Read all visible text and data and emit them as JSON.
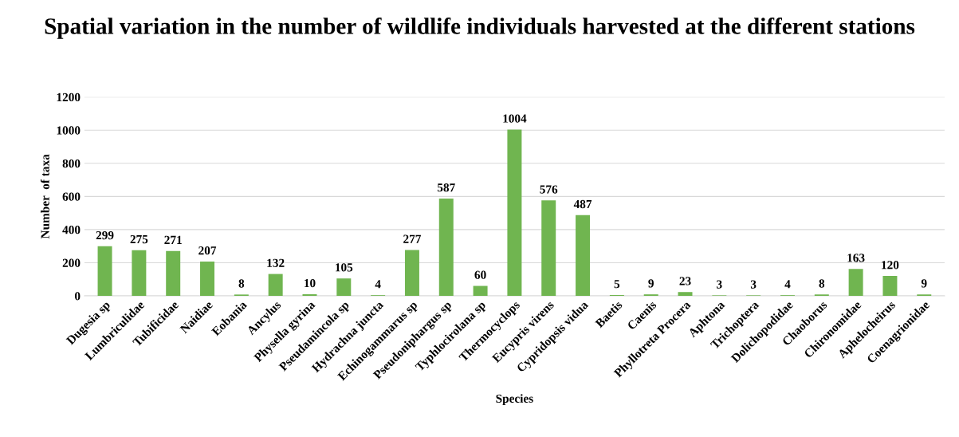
{
  "chart_data": {
    "type": "bar",
    "title": "Spatial variation in the number of wildlife individuals harvested at the different stations",
    "xlabel": "Species",
    "ylabel": "Number  of taxa",
    "categories": [
      "Dugesia sp",
      "Lumbriculidae",
      "Tubificidae",
      "Naidiae",
      "Eobania",
      "Ancylus",
      "Physella gyrina",
      "Pseudamincola sp",
      "Hydrachna juncta",
      "Echinogammarus sp",
      "Pseudoniphargus sp",
      "Typhlocirolana sp",
      "Thermocyclops",
      "Eucypris virens",
      "Cypridopsis vidua",
      "Baetis",
      "Caenis",
      "Phyllotreta Procera",
      "Aphtona",
      "Trichoptera",
      "Dolichopodidae",
      "Chaoborus",
      "Chironomidae",
      "Aphelocheirus",
      "Coenagrionidae"
    ],
    "values": [
      299,
      275,
      271,
      207,
      8,
      132,
      10,
      105,
      4,
      277,
      587,
      60,
      1004,
      576,
      487,
      5,
      9,
      23,
      3,
      3,
      4,
      8,
      163,
      120,
      9
    ],
    "color": "#70b550",
    "ylim": [
      0,
      1200
    ],
    "yticks": [
      0,
      200,
      400,
      600,
      800,
      1000,
      1200
    ],
    "grid": "y",
    "data_labels": true
  }
}
